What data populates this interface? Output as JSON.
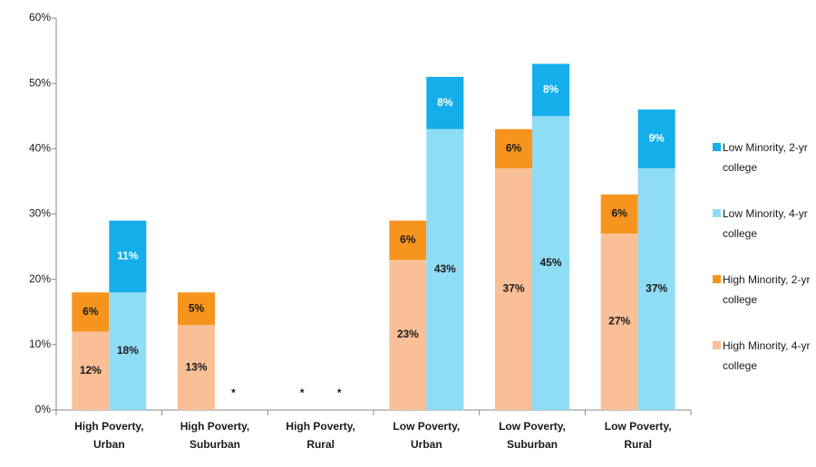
{
  "chart_data": {
    "type": "grouped_stacked_bar",
    "categories": [
      "High Poverty, Urban",
      "High Poverty, Suburban",
      "High Poverty, Rural",
      "Low Poverty, Urban",
      "Low Poverty, Suburban",
      "Low Poverty, Rural"
    ],
    "series": [
      {
        "name": "High Minority, 4-yr college",
        "color": "#f9bf97",
        "stack": 0,
        "values": [
          12,
          13,
          null,
          23,
          37,
          27
        ],
        "value_labels": [
          "12%",
          "13%",
          "*",
          "23%",
          "37%",
          "27%"
        ],
        "label_color": "#1a1a1a"
      },
      {
        "name": "High Minority, 2-yr college",
        "color": "#f7941e",
        "stack": 0,
        "values": [
          6,
          5,
          null,
          6,
          6,
          6
        ],
        "value_labels": [
          "6%",
          "5%",
          null,
          "6%",
          "6%",
          "6%"
        ],
        "label_color": "#1a1a1a"
      },
      {
        "name": "Low Minority, 4-yr college",
        "color": "#8fdcf6",
        "stack": 1,
        "values": [
          18,
          null,
          null,
          43,
          45,
          37
        ],
        "value_labels": [
          "18%",
          "*",
          "*",
          "43%",
          "45%",
          "37%"
        ],
        "label_color": "#1a1a1a"
      },
      {
        "name": "Low Minority, 2-yr college",
        "color": "#14aeea",
        "stack": 1,
        "values": [
          11,
          null,
          null,
          8,
          8,
          9
        ],
        "value_labels": [
          "11%",
          null,
          null,
          "8%",
          "8%",
          "9%"
        ],
        "label_color": "#ffffff"
      }
    ],
    "legend_order": [
      3,
      2,
      1,
      0
    ],
    "ylim": [
      0,
      60
    ],
    "yticks": [
      {
        "value": 0,
        "label": "0%"
      },
      {
        "value": 10,
        "label": "10%"
      },
      {
        "value": 20,
        "label": "20%"
      },
      {
        "value": 30,
        "label": "30%"
      },
      {
        "value": 40,
        "label": "40%"
      },
      {
        "value": 50,
        "label": "50%"
      },
      {
        "value": 60,
        "label": "60%"
      }
    ],
    "grid": false
  }
}
